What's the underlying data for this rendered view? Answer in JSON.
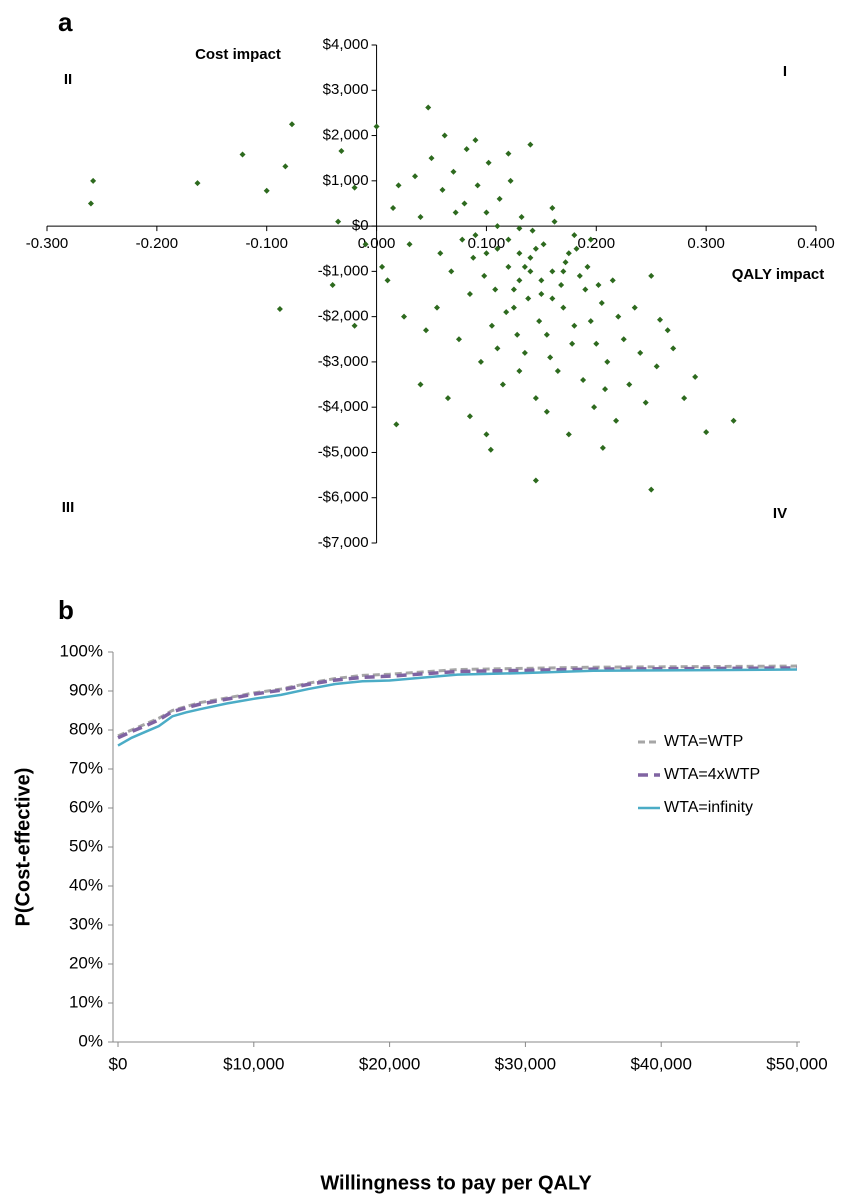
{
  "chart_data": [
    {
      "type": "scatter",
      "panel_label": "a",
      "x_label": "QALY impact",
      "y_label": "Cost impact",
      "quadrant_labels": [
        "I",
        "II",
        "III",
        "IV"
      ],
      "color": "#2d6a1e",
      "xlim": [
        -0.3,
        0.4
      ],
      "ylim": [
        -7000,
        4000
      ],
      "xticks": [
        {
          "value": -0.3,
          "label": "-0.300"
        },
        {
          "value": -0.2,
          "label": "-0.200"
        },
        {
          "value": -0.1,
          "label": "-0.100"
        },
        {
          "value": 0,
          "label": "0.000"
        },
        {
          "value": 0.1,
          "label": "0.100"
        },
        {
          "value": 0.2,
          "label": "0.200"
        },
        {
          "value": 0.3,
          "label": "0.300"
        },
        {
          "value": 0.4,
          "label": "0.400"
        }
      ],
      "yticks": [
        {
          "value": 4000,
          "label": "$4,000"
        },
        {
          "value": 3000,
          "label": "$3,000"
        },
        {
          "value": 2000,
          "label": "$2,000"
        },
        {
          "value": 1000,
          "label": "$1,000"
        },
        {
          "value": 0,
          "label": "$0"
        },
        {
          "value": -1000,
          "label": "-$1,000"
        },
        {
          "value": -2000,
          "label": "-$2,000"
        },
        {
          "value": -3000,
          "label": "-$3,000"
        },
        {
          "value": -4000,
          "label": "-$4,000"
        },
        {
          "value": -5000,
          "label": "-$5,000"
        },
        {
          "value": -6000,
          "label": "-$6,000"
        },
        {
          "value": -7000,
          "label": "-$7,000"
        }
      ],
      "x": [
        -0.258,
        -0.26,
        -0.163,
        -0.122,
        -0.1,
        -0.083,
        -0.077,
        -0.088,
        -0.032,
        -0.02,
        0.0,
        0.047,
        0.018,
        0.145,
        0.25,
        0.29,
        0.325,
        0.3,
        0.27,
        0.25,
        0.258,
        0.206,
        0.104,
        0.1,
        0.06,
        0.07,
        0.08,
        0.09,
        0.1,
        0.11,
        0.12,
        0.13,
        0.14,
        0.15,
        0.16,
        0.17,
        0.18,
        0.19,
        0.2,
        0.21,
        0.22,
        0.23,
        0.24,
        0.05,
        0.04,
        0.03,
        0.02,
        0.01,
        0.055,
        0.075,
        0.085,
        0.095,
        0.105,
        0.115,
        0.125,
        0.135,
        0.145,
        0.155,
        0.165,
        0.175,
        0.185,
        0.195,
        0.205,
        0.215,
        0.225,
        0.235,
        0.245,
        0.255,
        0.265,
        0.28,
        0.062,
        0.072,
        0.082,
        0.092,
        0.102,
        0.112,
        0.122,
        0.132,
        0.142,
        0.152,
        0.162,
        0.172,
        0.182,
        0.192,
        0.202,
        0.058,
        0.068,
        0.078,
        0.088,
        0.098,
        0.108,
        0.118,
        0.128,
        0.138,
        0.148,
        0.158,
        0.168,
        0.178,
        0.188,
        0.198,
        0.208,
        0.218,
        0.04,
        0.045,
        0.035,
        0.025,
        0.015,
        0.005,
        -0.01,
        -0.02,
        -0.035,
        -0.04,
        0.065,
        0.085,
        0.11,
        0.13,
        0.155,
        0.175,
        0.195,
        0.09,
        0.12,
        0.14,
        0.16,
        0.18,
        0.1,
        0.12,
        0.13,
        0.14,
        0.15,
        0.16,
        0.11,
        0.145,
        0.17,
        0.13,
        0.125,
        0.135
      ],
      "y": [
        1000,
        500,
        950,
        1580,
        780,
        1320,
        2250,
        -1830,
        1660,
        850,
        2200,
        2620,
        -4380,
        -5620,
        -5820,
        -3330,
        -4300,
        -4550,
        -2700,
        -1100,
        -2070,
        -4900,
        -4940,
        -4600,
        800,
        1200,
        500,
        -200,
        300,
        -500,
        -900,
        -1200,
        -700,
        -1500,
        -1000,
        -1800,
        -2200,
        -1400,
        -2600,
        -3000,
        -2000,
        -3500,
        -2800,
        1500,
        200,
        -400,
        900,
        -1200,
        -1800,
        -2500,
        -1500,
        -3000,
        -2200,
        -3500,
        -1800,
        -2800,
        -3800,
        -2400,
        -3200,
        -600,
        -1100,
        -300,
        -1700,
        -1200,
        -2500,
        -1800,
        -3900,
        -3100,
        -2300,
        -3800,
        2000,
        300,
        1700,
        900,
        1400,
        600,
        1000,
        200,
        -100,
        -400,
        100,
        -800,
        -500,
        -900,
        -1300,
        -600,
        -1000,
        -300,
        -700,
        -1100,
        -1400,
        -1900,
        -2400,
        -1600,
        -2100,
        -2900,
        -1300,
        -2600,
        -3400,
        -4000,
        -3600,
        -4300,
        -3500,
        -2300,
        1100,
        -2000,
        400,
        -900,
        -400,
        -2200,
        100,
        -1300,
        -3800,
        -4200,
        -2700,
        -3200,
        -4100,
        -4600,
        -2100,
        1900,
        1600,
        1800,
        400,
        -200,
        -600,
        -300,
        -600,
        -1000,
        -1200,
        -1600,
        0,
        -500,
        -1000,
        -50,
        -1400,
        -900
      ]
    },
    {
      "type": "line",
      "panel_label": "b",
      "x_label": "Willingness to pay per QALY",
      "y_label": "P(Cost-effective)",
      "legend": "right",
      "x": [
        0,
        1000,
        2000,
        3000,
        4000,
        5000,
        6000,
        8000,
        10000,
        12000,
        14000,
        16000,
        18000,
        20000,
        25000,
        30000,
        35000,
        40000,
        45000,
        50000
      ],
      "series": [
        {
          "name": "WTA=WTP",
          "color": "#a6a6a6",
          "dash": "7 4",
          "width": 3,
          "values": [
            78.5,
            80,
            81.5,
            83,
            85,
            86,
            87,
            88.2,
            89.5,
            90.5,
            92,
            93.2,
            94,
            94.3,
            95.5,
            95.8,
            96.1,
            96.2,
            96.3,
            96.4
          ]
        },
        {
          "name": "WTA=4xWTP",
          "color": "#8064a2",
          "dash": "10 6",
          "width": 3.5,
          "values": [
            78,
            79.6,
            81,
            82.6,
            84.7,
            85.7,
            86.6,
            87.9,
            89.2,
            90.2,
            91.7,
            92.8,
            93.5,
            93.8,
            95,
            95.3,
            95.6,
            95.7,
            95.8,
            95.9
          ]
        },
        {
          "name": "WTA=infinity",
          "color": "#4bacc6",
          "dash": "",
          "width": 2.5,
          "values": [
            76,
            78,
            79.5,
            81,
            83.5,
            84.5,
            85.3,
            86.8,
            88,
            89,
            90.5,
            91.8,
            92.5,
            92.7,
            94.2,
            94.6,
            95.2,
            95.3,
            95.4,
            95.5
          ]
        }
      ],
      "xlim": [
        0,
        50000
      ],
      "ylim": [
        0,
        100
      ],
      "xticks": [
        {
          "value": 0,
          "label": "$0"
        },
        {
          "value": 10000,
          "label": "$10,000"
        },
        {
          "value": 20000,
          "label": "$20,000"
        },
        {
          "value": 30000,
          "label": "$30,000"
        },
        {
          "value": 40000,
          "label": "$40,000"
        },
        {
          "value": 50000,
          "label": "$50,000"
        }
      ],
      "yticks": [
        {
          "value": 0,
          "label": "0%"
        },
        {
          "value": 10,
          "label": "10%"
        },
        {
          "value": 20,
          "label": "20%"
        },
        {
          "value": 30,
          "label": "30%"
        },
        {
          "value": 40,
          "label": "40%"
        },
        {
          "value": 50,
          "label": "50%"
        },
        {
          "value": 60,
          "label": "60%"
        },
        {
          "value": 70,
          "label": "70%"
        },
        {
          "value": 80,
          "label": "80%"
        },
        {
          "value": 90,
          "label": "90%"
        },
        {
          "value": 100,
          "label": "100%"
        }
      ]
    }
  ]
}
